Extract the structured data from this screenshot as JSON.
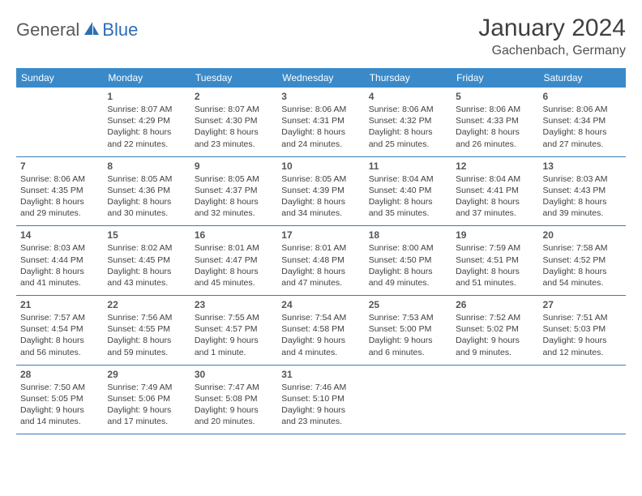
{
  "logo": {
    "part1": "General",
    "part2": "Blue"
  },
  "colors": {
    "header_bg": "#3a8ac9",
    "header_text": "#ffffff",
    "row_border": "#3a7bb5",
    "logo_gray": "#5a5a5a",
    "logo_blue": "#2d6fb5",
    "title_color": "#404040",
    "body_text": "#404040",
    "daynum_color": "#555555"
  },
  "title": "January 2024",
  "location": "Gachenbach, Germany",
  "day_headers": [
    "Sunday",
    "Monday",
    "Tuesday",
    "Wednesday",
    "Thursday",
    "Friday",
    "Saturday"
  ],
  "weeks": [
    [
      {
        "n": "",
        "sr": "",
        "ss": "",
        "dl": ""
      },
      {
        "n": "1",
        "sr": "8:07 AM",
        "ss": "4:29 PM",
        "dl": "8 hours and 22 minutes."
      },
      {
        "n": "2",
        "sr": "8:07 AM",
        "ss": "4:30 PM",
        "dl": "8 hours and 23 minutes."
      },
      {
        "n": "3",
        "sr": "8:06 AM",
        "ss": "4:31 PM",
        "dl": "8 hours and 24 minutes."
      },
      {
        "n": "4",
        "sr": "8:06 AM",
        "ss": "4:32 PM",
        "dl": "8 hours and 25 minutes."
      },
      {
        "n": "5",
        "sr": "8:06 AM",
        "ss": "4:33 PM",
        "dl": "8 hours and 26 minutes."
      },
      {
        "n": "6",
        "sr": "8:06 AM",
        "ss": "4:34 PM",
        "dl": "8 hours and 27 minutes."
      }
    ],
    [
      {
        "n": "7",
        "sr": "8:06 AM",
        "ss": "4:35 PM",
        "dl": "8 hours and 29 minutes."
      },
      {
        "n": "8",
        "sr": "8:05 AM",
        "ss": "4:36 PM",
        "dl": "8 hours and 30 minutes."
      },
      {
        "n": "9",
        "sr": "8:05 AM",
        "ss": "4:37 PM",
        "dl": "8 hours and 32 minutes."
      },
      {
        "n": "10",
        "sr": "8:05 AM",
        "ss": "4:39 PM",
        "dl": "8 hours and 34 minutes."
      },
      {
        "n": "11",
        "sr": "8:04 AM",
        "ss": "4:40 PM",
        "dl": "8 hours and 35 minutes."
      },
      {
        "n": "12",
        "sr": "8:04 AM",
        "ss": "4:41 PM",
        "dl": "8 hours and 37 minutes."
      },
      {
        "n": "13",
        "sr": "8:03 AM",
        "ss": "4:43 PM",
        "dl": "8 hours and 39 minutes."
      }
    ],
    [
      {
        "n": "14",
        "sr": "8:03 AM",
        "ss": "4:44 PM",
        "dl": "8 hours and 41 minutes."
      },
      {
        "n": "15",
        "sr": "8:02 AM",
        "ss": "4:45 PM",
        "dl": "8 hours and 43 minutes."
      },
      {
        "n": "16",
        "sr": "8:01 AM",
        "ss": "4:47 PM",
        "dl": "8 hours and 45 minutes."
      },
      {
        "n": "17",
        "sr": "8:01 AM",
        "ss": "4:48 PM",
        "dl": "8 hours and 47 minutes."
      },
      {
        "n": "18",
        "sr": "8:00 AM",
        "ss": "4:50 PM",
        "dl": "8 hours and 49 minutes."
      },
      {
        "n": "19",
        "sr": "7:59 AM",
        "ss": "4:51 PM",
        "dl": "8 hours and 51 minutes."
      },
      {
        "n": "20",
        "sr": "7:58 AM",
        "ss": "4:52 PM",
        "dl": "8 hours and 54 minutes."
      }
    ],
    [
      {
        "n": "21",
        "sr": "7:57 AM",
        "ss": "4:54 PM",
        "dl": "8 hours and 56 minutes."
      },
      {
        "n": "22",
        "sr": "7:56 AM",
        "ss": "4:55 PM",
        "dl": "8 hours and 59 minutes."
      },
      {
        "n": "23",
        "sr": "7:55 AM",
        "ss": "4:57 PM",
        "dl": "9 hours and 1 minute."
      },
      {
        "n": "24",
        "sr": "7:54 AM",
        "ss": "4:58 PM",
        "dl": "9 hours and 4 minutes."
      },
      {
        "n": "25",
        "sr": "7:53 AM",
        "ss": "5:00 PM",
        "dl": "9 hours and 6 minutes."
      },
      {
        "n": "26",
        "sr": "7:52 AM",
        "ss": "5:02 PM",
        "dl": "9 hours and 9 minutes."
      },
      {
        "n": "27",
        "sr": "7:51 AM",
        "ss": "5:03 PM",
        "dl": "9 hours and 12 minutes."
      }
    ],
    [
      {
        "n": "28",
        "sr": "7:50 AM",
        "ss": "5:05 PM",
        "dl": "9 hours and 14 minutes."
      },
      {
        "n": "29",
        "sr": "7:49 AM",
        "ss": "5:06 PM",
        "dl": "9 hours and 17 minutes."
      },
      {
        "n": "30",
        "sr": "7:47 AM",
        "ss": "5:08 PM",
        "dl": "9 hours and 20 minutes."
      },
      {
        "n": "31",
        "sr": "7:46 AM",
        "ss": "5:10 PM",
        "dl": "9 hours and 23 minutes."
      },
      {
        "n": "",
        "sr": "",
        "ss": "",
        "dl": ""
      },
      {
        "n": "",
        "sr": "",
        "ss": "",
        "dl": ""
      },
      {
        "n": "",
        "sr": "",
        "ss": "",
        "dl": ""
      }
    ]
  ],
  "labels": {
    "sunrise": "Sunrise:",
    "sunset": "Sunset:",
    "daylight": "Daylight:"
  }
}
